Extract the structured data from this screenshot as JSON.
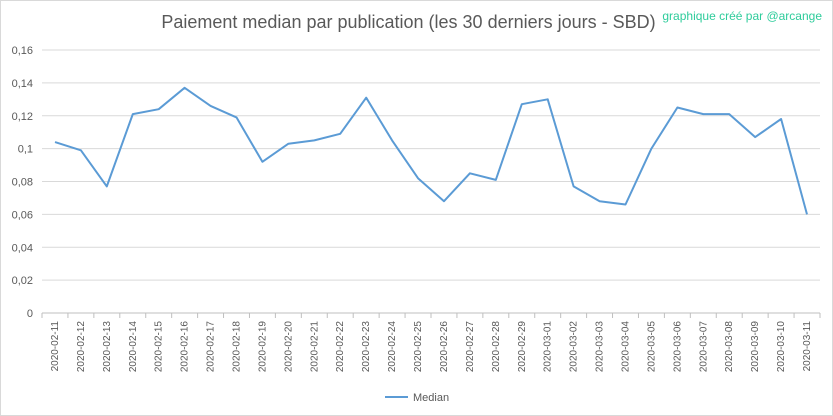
{
  "chart_data": {
    "type": "line",
    "title": "Paiement median par publication (les 30 derniers jours - SBD)",
    "credit": "graphique créé par @arcange",
    "xlabel": "",
    "ylabel": "",
    "ylim": [
      0,
      0.16
    ],
    "yticks": [
      0,
      0.02,
      0.04,
      0.06,
      0.08,
      0.1,
      0.12,
      0.14,
      0.16
    ],
    "ytick_labels": [
      "0",
      "0,02",
      "0,04",
      "0,06",
      "0,08",
      "0,1",
      "0,12",
      "0,14",
      "0,16"
    ],
    "grid": true,
    "legend_position": "bottom",
    "categories": [
      "2020-02-11",
      "2020-02-12",
      "2020-02-13",
      "2020-02-14",
      "2020-02-15",
      "2020-02-16",
      "2020-02-17",
      "2020-02-18",
      "2020-02-19",
      "2020-02-20",
      "2020-02-21",
      "2020-02-22",
      "2020-02-23",
      "2020-02-24",
      "2020-02-25",
      "2020-02-26",
      "2020-02-27",
      "2020-02-28",
      "2020-02-29",
      "2020-03-01",
      "2020-03-02",
      "2020-03-03",
      "2020-03-04",
      "2020-03-05",
      "2020-03-06",
      "2020-03-07",
      "2020-03-08",
      "2020-03-09",
      "2020-03-10",
      "2020-03-11"
    ],
    "series": [
      {
        "name": "Median",
        "color": "#5b9bd5",
        "values": [
          0.104,
          0.099,
          0.077,
          0.121,
          0.124,
          0.137,
          0.126,
          0.119,
          0.092,
          0.103,
          0.105,
          0.109,
          0.131,
          0.105,
          0.082,
          0.068,
          0.085,
          0.081,
          0.127,
          0.13,
          0.077,
          0.068,
          0.066,
          0.1,
          0.125,
          0.121,
          0.121,
          0.107,
          0.118,
          0.06
        ]
      }
    ]
  }
}
